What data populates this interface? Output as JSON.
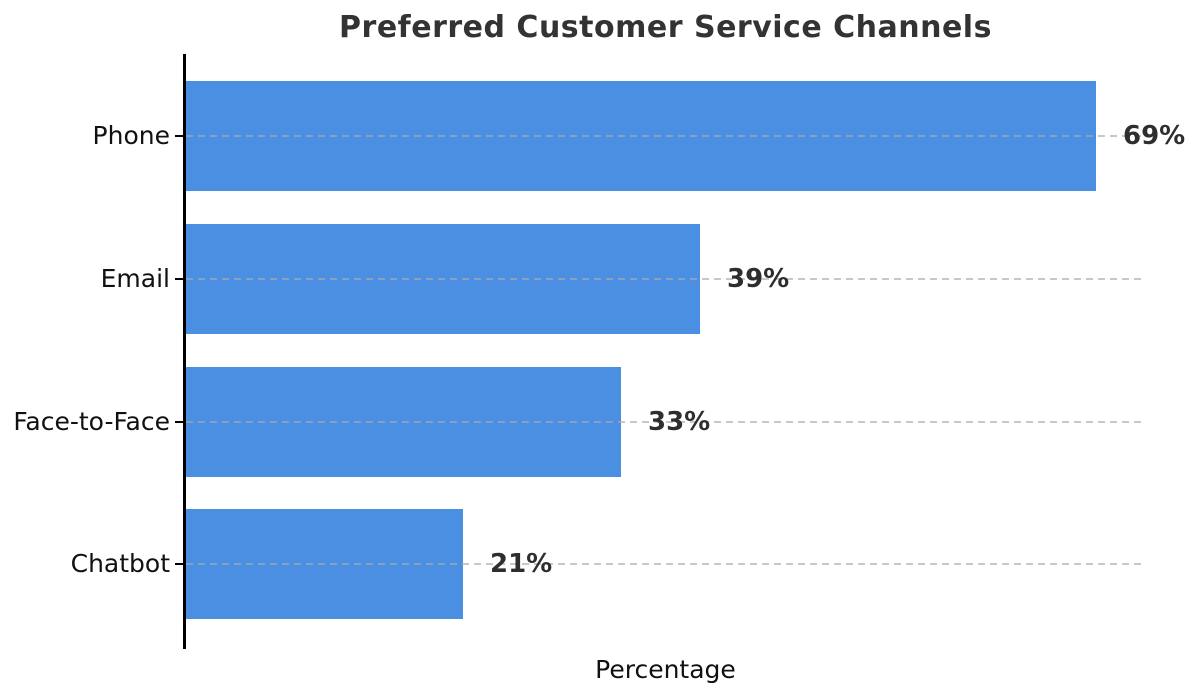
{
  "chart_data": {
    "type": "bar",
    "orientation": "horizontal",
    "title": "Preferred Customer Service Channels",
    "categories": [
      "Phone",
      "Email",
      "Face-to-Face",
      "Chatbot"
    ],
    "values": [
      69,
      39,
      33,
      21
    ],
    "value_labels": [
      "69%",
      "39%",
      "33%",
      "21%"
    ],
    "xlabel": "Percentage",
    "ylabel": "",
    "xlim": [
      0,
      72.7
    ],
    "grid": "dashed per-category horizontal lines, drawn over bars",
    "legend": "none",
    "colors": {
      "bar": "#4a8fe2",
      "title": "#333333",
      "category_text": "#111111",
      "value_text": "#2e2e2e",
      "gridline": "rgba(170,170,170,0.65)",
      "axis": "#000000",
      "background": "#ffffff"
    }
  }
}
